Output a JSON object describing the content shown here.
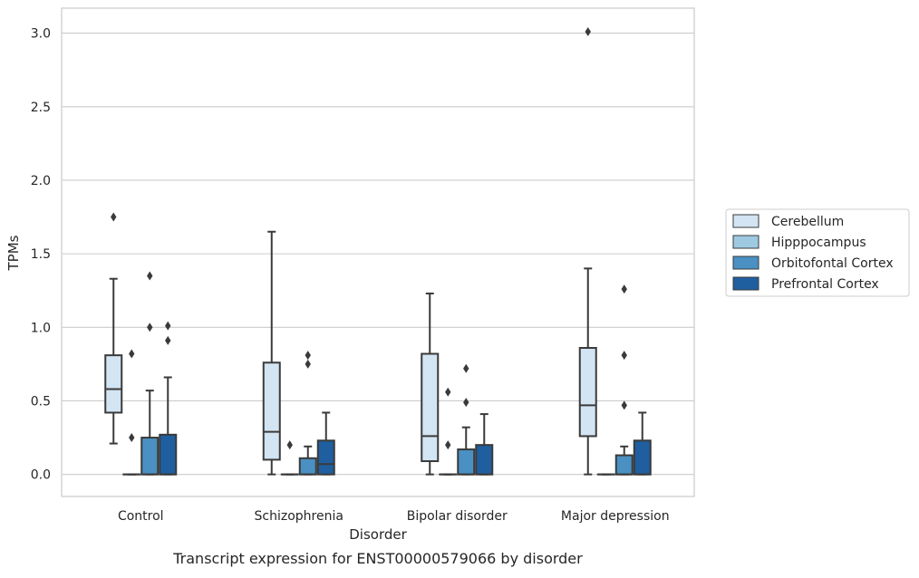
{
  "chart_data": {
    "type": "box",
    "title": "",
    "xlabel": "Disorder",
    "ylabel": "TPMs",
    "caption": "Transcript expression for ENST00000579066 by disorder",
    "ylim": [
      -0.15,
      3.17
    ],
    "yticks": [
      0.0,
      0.5,
      1.0,
      1.5,
      2.0,
      2.5,
      3.0
    ],
    "ytick_labels": [
      "0.0",
      "0.5",
      "1.0",
      "1.5",
      "2.0",
      "2.5",
      "3.0"
    ],
    "grid": "horizontal",
    "legend_position": "right",
    "categories": [
      "Control",
      "Schizophrenia",
      "Bipolar disorder",
      "Major depression"
    ],
    "series": [
      {
        "name": "Cerebellum",
        "color": "#d3e4f3",
        "boxes": [
          {
            "whisker_low": 0.21,
            "q1": 0.42,
            "median": 0.58,
            "q3": 0.81,
            "whisker_high": 1.33,
            "outliers": [
              1.75
            ]
          },
          {
            "whisker_low": 0.0,
            "q1": 0.1,
            "median": 0.29,
            "q3": 0.76,
            "whisker_high": 1.65,
            "outliers": []
          },
          {
            "whisker_low": 0.0,
            "q1": 0.09,
            "median": 0.26,
            "q3": 0.82,
            "whisker_high": 1.23,
            "outliers": []
          },
          {
            "whisker_low": 0.0,
            "q1": 0.26,
            "median": 0.47,
            "q3": 0.86,
            "whisker_high": 1.4,
            "outliers": [
              3.01
            ]
          }
        ]
      },
      {
        "name": "Hipppocampus",
        "color": "#9ecae1",
        "boxes": [
          {
            "whisker_low": 0.0,
            "q1": 0.0,
            "median": 0.0,
            "q3": 0.0,
            "whisker_high": 0.0,
            "outliers": [
              0.25,
              0.82
            ]
          },
          {
            "whisker_low": 0.0,
            "q1": 0.0,
            "median": 0.0,
            "q3": 0.0,
            "whisker_high": 0.0,
            "outliers": [
              0.2
            ]
          },
          {
            "whisker_low": 0.0,
            "q1": 0.0,
            "median": 0.0,
            "q3": 0.0,
            "whisker_high": 0.0,
            "outliers": [
              0.2,
              0.56
            ]
          },
          {
            "whisker_low": 0.0,
            "q1": 0.0,
            "median": 0.0,
            "q3": 0.0,
            "whisker_high": 0.0,
            "outliers": []
          }
        ]
      },
      {
        "name": "Orbitofontal Cortex",
        "color": "#4a90c2",
        "boxes": [
          {
            "whisker_low": 0.0,
            "q1": 0.0,
            "median": 0.0,
            "q3": 0.25,
            "whisker_high": 0.57,
            "outliers": [
              1.0,
              1.35
            ]
          },
          {
            "whisker_low": 0.0,
            "q1": 0.0,
            "median": 0.0,
            "q3": 0.11,
            "whisker_high": 0.19,
            "outliers": [
              0.75,
              0.81
            ]
          },
          {
            "whisker_low": 0.0,
            "q1": 0.0,
            "median": 0.0,
            "q3": 0.17,
            "whisker_high": 0.32,
            "outliers": [
              0.49,
              0.72
            ]
          },
          {
            "whisker_low": 0.0,
            "q1": 0.0,
            "median": 0.0,
            "q3": 0.13,
            "whisker_high": 0.19,
            "outliers": [
              0.47,
              0.81,
              1.26
            ]
          }
        ]
      },
      {
        "name": "Prefrontal Cortex",
        "color": "#1f5fa0",
        "boxes": [
          {
            "whisker_low": 0.0,
            "q1": 0.0,
            "median": 0.0,
            "q3": 0.27,
            "whisker_high": 0.66,
            "outliers": [
              0.91,
              1.01
            ]
          },
          {
            "whisker_low": 0.0,
            "q1": 0.0,
            "median": 0.07,
            "q3": 0.23,
            "whisker_high": 0.42,
            "outliers": []
          },
          {
            "whisker_low": 0.0,
            "q1": 0.0,
            "median": 0.0,
            "q3": 0.2,
            "whisker_high": 0.41,
            "outliers": []
          },
          {
            "whisker_low": 0.0,
            "q1": 0.0,
            "median": 0.0,
            "q3": 0.23,
            "whisker_high": 0.42,
            "outliers": []
          }
        ]
      }
    ]
  }
}
